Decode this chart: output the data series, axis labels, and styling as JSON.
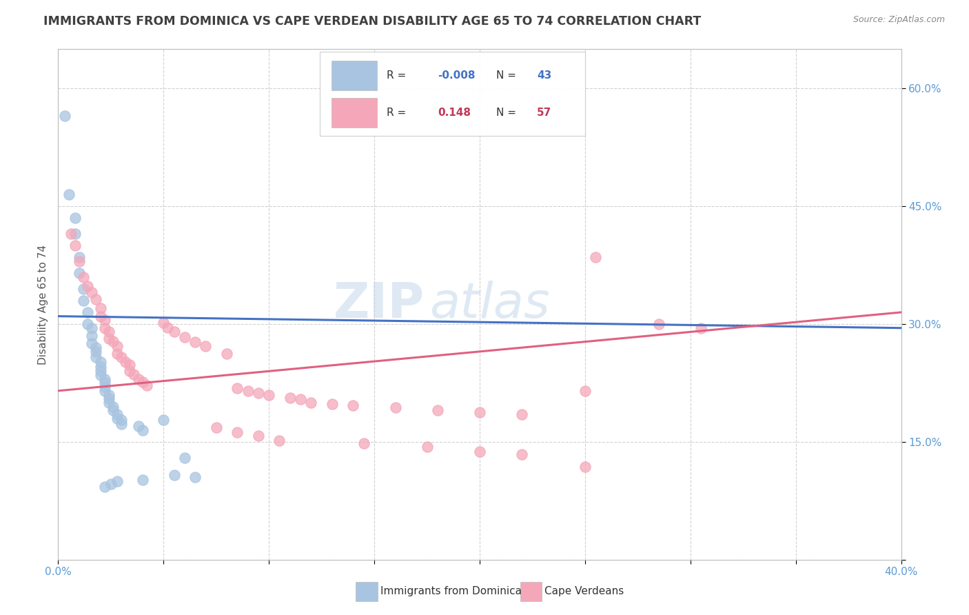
{
  "title": "IMMIGRANTS FROM DOMINICA VS CAPE VERDEAN DISABILITY AGE 65 TO 74 CORRELATION CHART",
  "source": "Source: ZipAtlas.com",
  "ylabel": "Disability Age 65 to 74",
  "xlim": [
    0.0,
    0.4
  ],
  "ylim": [
    0.0,
    0.65
  ],
  "xticks": [
    0.0,
    0.05,
    0.1,
    0.15,
    0.2,
    0.25,
    0.3,
    0.35,
    0.4
  ],
  "xticklabels": [
    "0.0%",
    "",
    "",
    "",
    "",
    "",
    "",
    "",
    "40.0%"
  ],
  "yticks": [
    0.0,
    0.15,
    0.3,
    0.45,
    0.6
  ],
  "yticklabels": [
    "",
    "15.0%",
    "30.0%",
    "45.0%",
    "60.0%"
  ],
  "legend_r1": "-0.008",
  "legend_n1": "43",
  "legend_r2": "0.148",
  "legend_n2": "57",
  "dominica_color": "#a8c4e0",
  "capeverde_color": "#f4a7b9",
  "dominica_scatter": [
    [
      0.003,
      0.565
    ],
    [
      0.005,
      0.465
    ],
    [
      0.008,
      0.435
    ],
    [
      0.008,
      0.415
    ],
    [
      0.01,
      0.385
    ],
    [
      0.01,
      0.365
    ],
    [
      0.012,
      0.345
    ],
    [
      0.012,
      0.33
    ],
    [
      0.014,
      0.315
    ],
    [
      0.014,
      0.3
    ],
    [
      0.016,
      0.295
    ],
    [
      0.016,
      0.285
    ],
    [
      0.016,
      0.275
    ],
    [
      0.018,
      0.27
    ],
    [
      0.018,
      0.265
    ],
    [
      0.018,
      0.258
    ],
    [
      0.02,
      0.252
    ],
    [
      0.02,
      0.246
    ],
    [
      0.02,
      0.24
    ],
    [
      0.02,
      0.235
    ],
    [
      0.022,
      0.23
    ],
    [
      0.022,
      0.225
    ],
    [
      0.022,
      0.22
    ],
    [
      0.022,
      0.215
    ],
    [
      0.024,
      0.21
    ],
    [
      0.024,
      0.205
    ],
    [
      0.024,
      0.2
    ],
    [
      0.026,
      0.195
    ],
    [
      0.026,
      0.19
    ],
    [
      0.028,
      0.185
    ],
    [
      0.028,
      0.18
    ],
    [
      0.03,
      0.178
    ],
    [
      0.03,
      0.173
    ],
    [
      0.038,
      0.17
    ],
    [
      0.04,
      0.165
    ],
    [
      0.05,
      0.178
    ],
    [
      0.055,
      0.108
    ],
    [
      0.06,
      0.13
    ],
    [
      0.065,
      0.105
    ],
    [
      0.04,
      0.102
    ],
    [
      0.028,
      0.1
    ],
    [
      0.025,
      0.096
    ],
    [
      0.022,
      0.093
    ]
  ],
  "capeverde_scatter": [
    [
      0.006,
      0.415
    ],
    [
      0.008,
      0.4
    ],
    [
      0.01,
      0.38
    ],
    [
      0.012,
      0.36
    ],
    [
      0.014,
      0.348
    ],
    [
      0.016,
      0.34
    ],
    [
      0.018,
      0.332
    ],
    [
      0.02,
      0.32
    ],
    [
      0.02,
      0.31
    ],
    [
      0.022,
      0.305
    ],
    [
      0.022,
      0.295
    ],
    [
      0.024,
      0.29
    ],
    [
      0.024,
      0.282
    ],
    [
      0.026,
      0.278
    ],
    [
      0.028,
      0.272
    ],
    [
      0.028,
      0.262
    ],
    [
      0.03,
      0.258
    ],
    [
      0.032,
      0.252
    ],
    [
      0.034,
      0.248
    ],
    [
      0.034,
      0.24
    ],
    [
      0.036,
      0.236
    ],
    [
      0.038,
      0.23
    ],
    [
      0.04,
      0.226
    ],
    [
      0.042,
      0.222
    ],
    [
      0.05,
      0.302
    ],
    [
      0.052,
      0.296
    ],
    [
      0.055,
      0.29
    ],
    [
      0.06,
      0.283
    ],
    [
      0.065,
      0.277
    ],
    [
      0.07,
      0.272
    ],
    [
      0.08,
      0.262
    ],
    [
      0.085,
      0.218
    ],
    [
      0.09,
      0.215
    ],
    [
      0.095,
      0.212
    ],
    [
      0.1,
      0.21
    ],
    [
      0.11,
      0.206
    ],
    [
      0.115,
      0.204
    ],
    [
      0.12,
      0.2
    ],
    [
      0.13,
      0.198
    ],
    [
      0.14,
      0.196
    ],
    [
      0.16,
      0.194
    ],
    [
      0.18,
      0.19
    ],
    [
      0.2,
      0.188
    ],
    [
      0.22,
      0.185
    ],
    [
      0.25,
      0.215
    ],
    [
      0.255,
      0.385
    ],
    [
      0.285,
      0.3
    ],
    [
      0.305,
      0.295
    ],
    [
      0.075,
      0.168
    ],
    [
      0.085,
      0.162
    ],
    [
      0.095,
      0.158
    ],
    [
      0.105,
      0.152
    ],
    [
      0.145,
      0.148
    ],
    [
      0.175,
      0.144
    ],
    [
      0.2,
      0.138
    ],
    [
      0.22,
      0.134
    ],
    [
      0.25,
      0.118
    ]
  ],
  "dominica_trendline": [
    [
      0.0,
      0.31
    ],
    [
      0.4,
      0.295
    ]
  ],
  "capeverde_trendline": [
    [
      0.0,
      0.215
    ],
    [
      0.4,
      0.315
    ]
  ],
  "watermark_zip": "ZIP",
  "watermark_atlas": "atlas",
  "bg_color": "#ffffff",
  "grid_color": "#cccccc",
  "axis_color": "#5b9bd5",
  "title_color": "#404040"
}
